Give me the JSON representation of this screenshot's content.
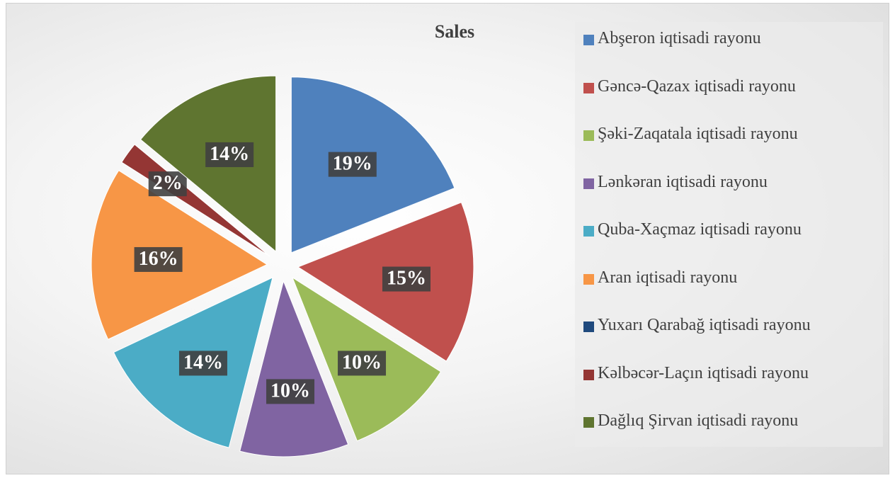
{
  "chart_data": {
    "type": "pie",
    "title": "Sales",
    "categories": [
      "Abşeron iqtisadi rayonu",
      "Gəncə-Qazax iqtisadi rayonu",
      "Şəki-Zaqatala iqtisadi rayonu",
      "Lənkəran iqtisadi rayonu",
      "Quba-Xaçmaz iqtisadi rayonu",
      "Aran iqtisadi rayonu",
      "Yuxarı Qarabağ iqtisadi rayonu",
      "Kəlbəcər-Laçın iqtisadi rayonu",
      "Dağlıq Şirvan iqtisadi rayonu"
    ],
    "values": [
      19,
      15,
      10,
      10,
      14,
      16,
      0,
      2,
      14
    ],
    "value_labels": [
      "19%",
      "15%",
      "10%",
      "10%",
      "14%",
      "16%",
      null,
      "2%",
      "14%"
    ],
    "colors": [
      "#4f81bd",
      "#c0504d",
      "#9bbb59",
      "#8064a2",
      "#4bacc6",
      "#f79646",
      "#1f497d",
      "#943634",
      "#5f7530"
    ],
    "legend": "right"
  }
}
